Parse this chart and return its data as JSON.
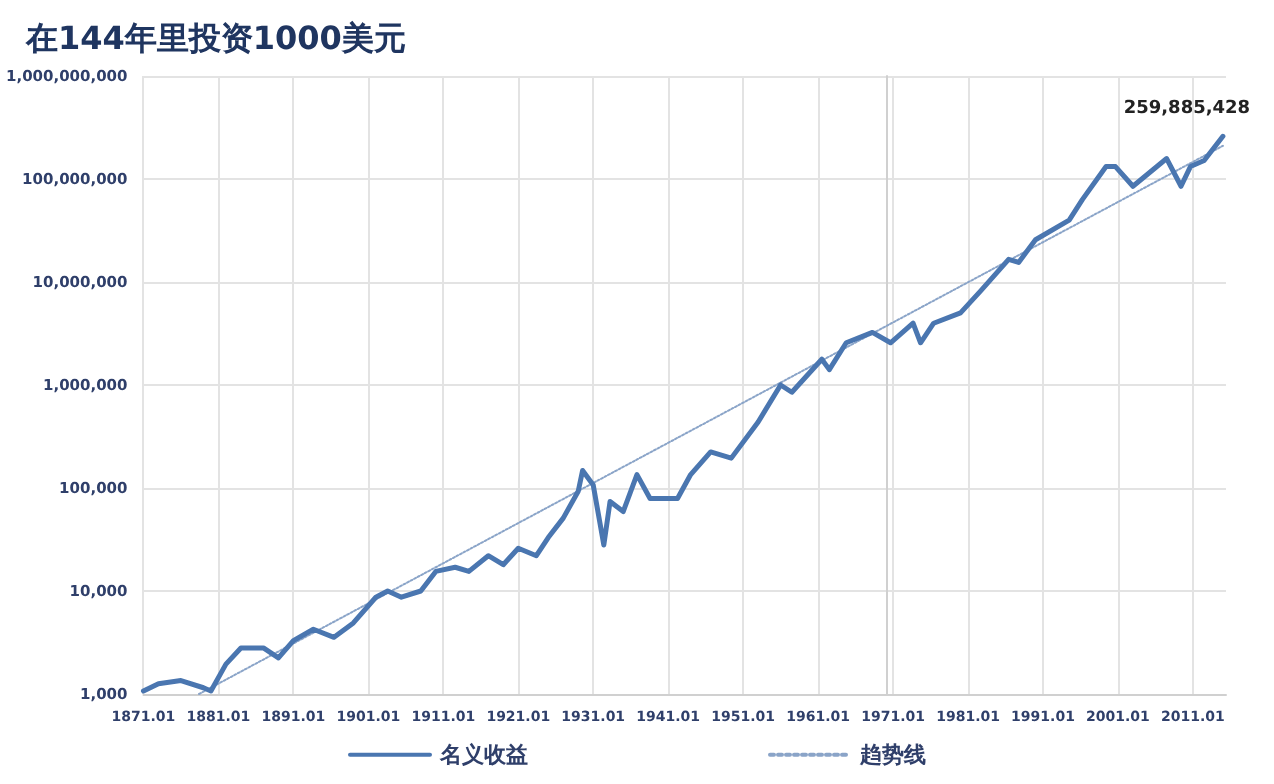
{
  "chart_data": {
    "type": "line",
    "title": "在144年里投资1000美元",
    "xlim": [
      "1871-01",
      "2015-06"
    ],
    "xticks": [
      {
        "value": "1871-01",
        "label": "1871.01"
      },
      {
        "value": "1881-01",
        "label": "1881.01"
      },
      {
        "value": "1891-01",
        "label": "1891.01"
      },
      {
        "value": "1901-01",
        "label": "1901.01"
      },
      {
        "value": "1911-01",
        "label": "1911.01"
      },
      {
        "value": "1921-01",
        "label": "1921.01"
      },
      {
        "value": "1931-01",
        "label": "1931.01"
      },
      {
        "value": "1941-01",
        "label": "1941.01"
      },
      {
        "value": "1951-01",
        "label": "1951.01"
      },
      {
        "value": "1961-01",
        "label": "1961.01"
      },
      {
        "value": "1971-01",
        "label": "1971.01"
      },
      {
        "value": "1981-01",
        "label": "1981.01"
      },
      {
        "value": "1991-01",
        "label": "1991.01"
      },
      {
        "value": "2001-01",
        "label": "2001.01"
      },
      {
        "value": "2011-01",
        "label": "2011.01"
      }
    ],
    "ylim": [
      1000,
      1000000000
    ],
    "yticks": [
      {
        "value": 1000,
        "label": "1,000"
      },
      {
        "value": 10000,
        "label": "10,000"
      },
      {
        "value": 100000,
        "label": "100,000"
      },
      {
        "value": 1000000,
        "label": "1,000,000"
      },
      {
        "value": 10000000,
        "label": "10,000,000"
      },
      {
        "value": 100000000,
        "label": "100,000,000"
      },
      {
        "value": 1000000000,
        "label": "1,000,000,000"
      }
    ],
    "log": "y",
    "grid": true,
    "legend": "bottom",
    "marker": "none",
    "series": [
      {
        "name": "名义收益",
        "color": "#4a76b0",
        "line_style": "solid",
        "x": [
          "1871-01",
          "1873-01",
          "1876-01",
          "1879-01",
          "1880-01",
          "1882-01",
          "1884-01",
          "1887-01",
          "1889-01",
          "1891-01",
          "1893-09",
          "1896-06",
          "1899-01",
          "1902-01",
          "1903-08",
          "1905-06",
          "1908-01",
          "1910-01",
          "1912-08",
          "1914-06",
          "1917-01",
          "1919-01",
          "1921-01",
          "1923-06",
          "1925-01",
          "1927-01",
          "1929-01",
          "1929-08",
          "1931-01",
          "1932-06",
          "1933-04",
          "1935-01",
          "1936-11",
          "1938-08",
          "1942-04",
          "1944-01",
          "1946-09",
          "1949-06",
          "1953-01",
          "1956-01",
          "1957-07",
          "1961-07",
          "1962-07",
          "1964-10",
          "1968-04",
          "1970-09",
          "1973-09",
          "1974-09",
          "1976-06",
          "1980-01",
          "1982-10",
          "1986-06",
          "1987-10",
          "1990-01",
          "1994-07",
          "1996-04",
          "1999-06",
          "2000-09",
          "2003-01",
          "2007-07",
          "2009-06",
          "2010-09",
          "2012-07",
          "2015-01"
        ],
        "values": [
          1070,
          1260,
          1350,
          1150,
          1070,
          1950,
          2800,
          2800,
          2240,
          3300,
          4250,
          3550,
          4900,
          8700,
          10000,
          8700,
          10000,
          15500,
          17000,
          15500,
          22000,
          18000,
          26000,
          22000,
          33000,
          51000,
          93000,
          148000,
          107000,
          28000,
          74000,
          59000,
          135000,
          79000,
          79000,
          135000,
          224000,
          195000,
          437000,
          1000000,
          850000,
          1780000,
          1410000,
          2570000,
          3240000,
          2570000,
          3980000,
          2570000,
          3980000,
          5010000,
          8300000,
          16600000,
          15500000,
          25700000,
          39800000,
          63000000,
          132000000,
          132000000,
          85000000,
          158000000,
          85000000,
          132000000,
          151000000,
          259885428
        ]
      },
      {
        "name": "趋势线",
        "color": "#8aa4c8",
        "line_style": "dotted",
        "x": [
          "1878-06",
          "2015-01"
        ],
        "values": [
          1000,
          210000000
        ]
      }
    ],
    "annotations": [
      {
        "text": "259,885,428",
        "x": "2015-01",
        "y": 259885428
      }
    ]
  }
}
